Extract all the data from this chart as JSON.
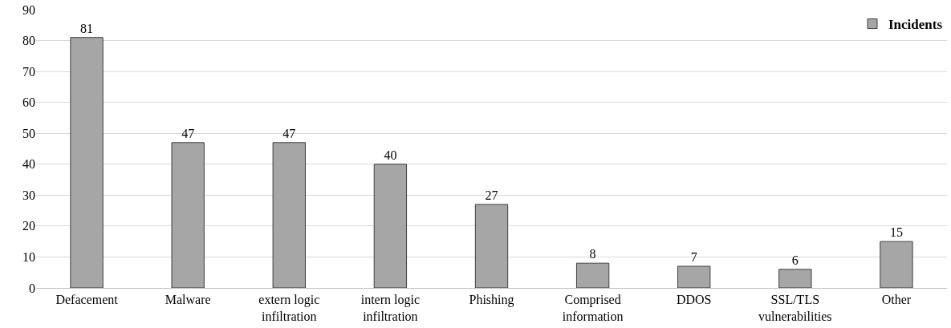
{
  "chart_data": {
    "type": "bar",
    "categories": [
      "Defacement",
      "Malware",
      "extern logic\ninfiltration",
      "intern logic\ninfiltration",
      "Phishing",
      "Comprised\ninformation",
      "DDOS",
      "SSL/TLS\nvulnerabilities",
      "Other"
    ],
    "series": [
      {
        "name": "Incidents",
        "color": "#a6a6a6",
        "values": [
          81,
          47,
          47,
          40,
          27,
          8,
          7,
          6,
          15
        ]
      }
    ],
    "ylim": [
      0,
      90
    ],
    "yticks": [
      0,
      10,
      20,
      30,
      40,
      50,
      60,
      70,
      80,
      90
    ],
    "grid": "y",
    "legend": "top right",
    "data_labels": true
  }
}
